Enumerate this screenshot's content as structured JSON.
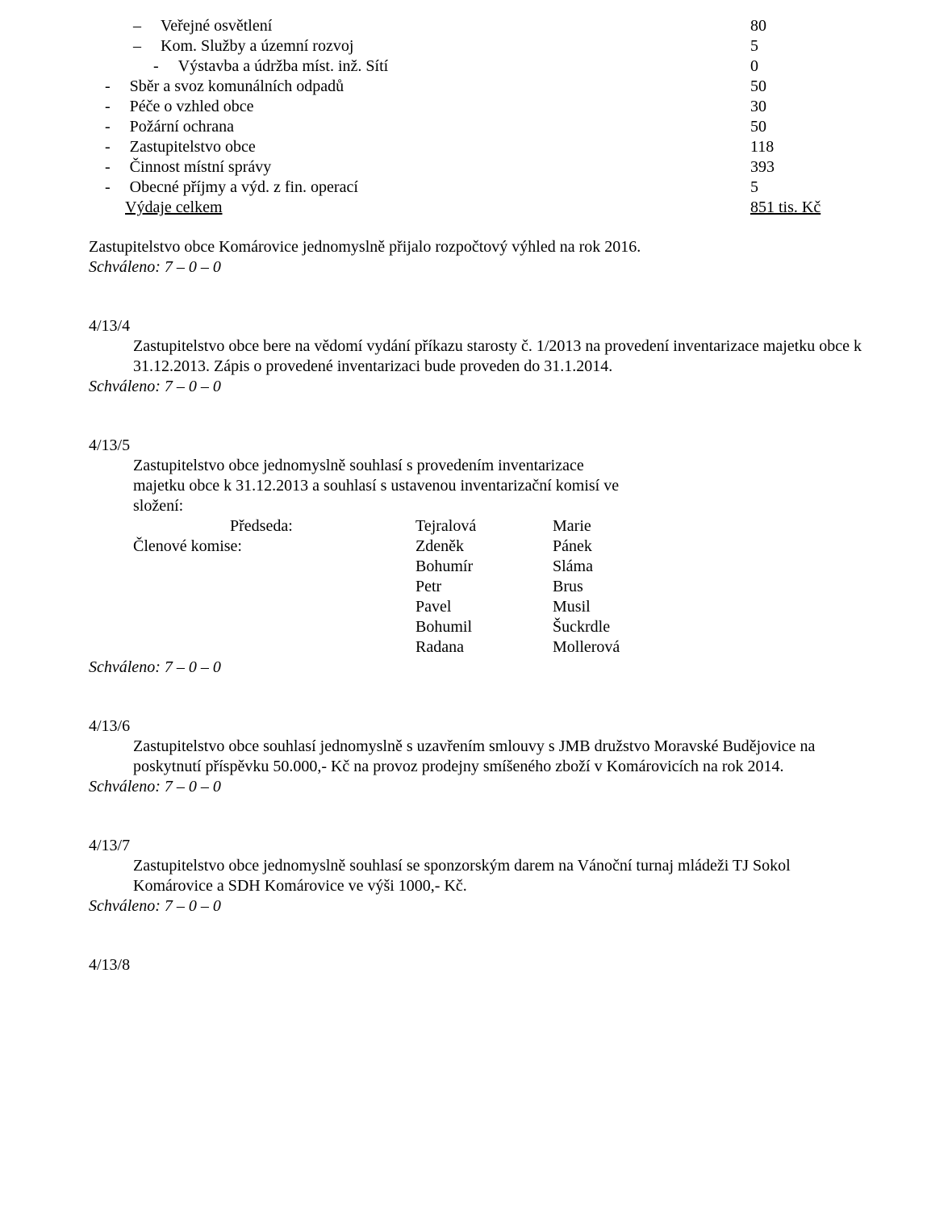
{
  "budget": {
    "items": [
      {
        "indent": "l1",
        "label": "Veřejné osvětlení",
        "value": "80"
      },
      {
        "indent": "l1",
        "label": "Kom. Služby a územní rozvoj",
        "value": "5"
      },
      {
        "indent": "l2",
        "label": "Výstavba a údržba míst. inž. Sítí",
        "value": "0"
      },
      {
        "indent": "d",
        "label": "Sběr a svoz komunálních odpadů",
        "value": "50"
      },
      {
        "indent": "d",
        "label": "Péče o vzhled obce",
        "value": "30"
      },
      {
        "indent": "d",
        "label": "Požární ochrana",
        "value": "50"
      },
      {
        "indent": "d",
        "label": "Zastupitelstvo obce",
        "value": "118"
      },
      {
        "indent": "d",
        "label": "Činnost místní správy",
        "value": "393"
      },
      {
        "indent": "d",
        "label": "Obecné příjmy a výd. z fin. operací",
        "value": "5"
      }
    ],
    "total_label": "Výdaje celkem",
    "total_value": "851 tis. Kč"
  },
  "para_approval": "Zastupitelstvo obce Komárovice jednomyslně přijalo rozpočtový výhled na rok 2016.",
  "approved": "Schváleno: 7 – 0 – 0",
  "s4134": {
    "num": "4/13/4",
    "body": "Zastupitelstvo obce bere na vědomí vydání příkazu starosty č. 1/2013 na  provedení inventarizace majetku obce k 31.12.2013. Zápis o provedené inventarizaci bude proveden do 31.1.2014."
  },
  "s4135": {
    "num": "4/13/5",
    "intro1": "Zastupitelstvo obce jednomyslně souhlasí s provedením inventarizace",
    "intro2": "majetku obce k 31.12.2013 a souhlasí s ustavenou inventarizační komisí ve",
    "intro3": "složení:",
    "role_chair": "Předseda:",
    "role_members": "Členové komise:",
    "people": [
      {
        "first": "Tejralová",
        "last": "Marie"
      },
      {
        "first": "Zdeněk",
        "last": "Pánek"
      },
      {
        "first": "Bohumír",
        "last": "Sláma"
      },
      {
        "first": "Petr",
        "last": "Brus"
      },
      {
        "first": "Pavel",
        "last": "Musil"
      },
      {
        "first": "Bohumil",
        "last": "Šuckrdle"
      },
      {
        "first": "Radana",
        "last": "Mollerová"
      }
    ]
  },
  "s4136": {
    "num": "4/13/6",
    "body": "Zastupitelstvo obce souhlasí jednomyslně s uzavřením smlouvy s JMB družstvo Moravské Budějovice na poskytnutí příspěvku 50.000,- Kč na provoz prodejny smíšeného zboží v Komárovicích na rok 2014."
  },
  "s4137": {
    "num": "4/13/7",
    "body": "Zastupitelstvo obce jednomyslně souhlasí se sponzorským darem na Vánoční turnaj mládeži TJ Sokol Komárovice a SDH Komárovice ve výši 1000,- Kč."
  },
  "s4138": {
    "num": "4/13/8"
  },
  "dash_en": "–",
  "dash_hy": "-"
}
